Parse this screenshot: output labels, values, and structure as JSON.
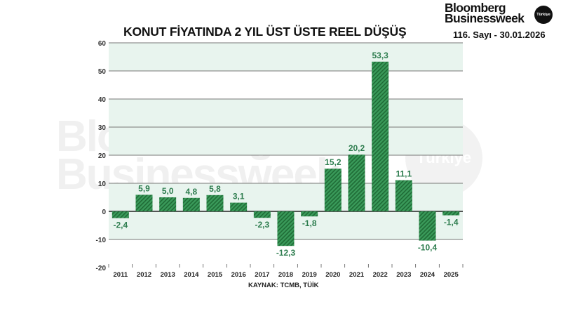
{
  "header": {
    "title": "KONUT FİYATINDA 2 YIL ÜST ÜSTE REEL DÜŞÜŞ",
    "brand_line1": "Bloomberg",
    "brand_line2": "Businessweek",
    "brand_badge": "Türkiye",
    "issue": "116. Sayı - 30.01.2026"
  },
  "watermark": {
    "line1": "Bloomberg",
    "line2": "Businessweek",
    "badge": "Türkiye"
  },
  "footer": {
    "source": "KAYNAK: TCMB, TÜİK"
  },
  "colors": {
    "bar_fill": "#2e8b4a",
    "bar_stripe": "#1f6b36",
    "label": "#2e7d4f",
    "band": "#e8f4ee",
    "gridline": "#777777"
  },
  "chart_data": {
    "type": "bar",
    "title": "KONUT FİYATINDA 2 YIL ÜST ÜSTE REEL DÜŞÜŞ",
    "xlabel": "",
    "ylabel": "",
    "categories": [
      "2011",
      "2012",
      "2013",
      "2014",
      "2015",
      "2016",
      "2017",
      "2018",
      "2019",
      "2020",
      "2021",
      "2022",
      "2023",
      "2024",
      "2025"
    ],
    "values": [
      -2.4,
      5.9,
      5.0,
      4.8,
      5.8,
      3.1,
      -2.3,
      -12.3,
      -1.8,
      15.2,
      20.2,
      53.3,
      11.1,
      -10.4,
      -1.4
    ],
    "value_labels": [
      "-2,4",
      "5,9",
      "5,0",
      "4,8",
      "5,8",
      "3,1",
      "-2,3",
      "-12,3",
      "-1,8",
      "15,2",
      "20,2",
      "53,3",
      "11,1",
      "-10,4",
      "-1,4"
    ],
    "yticks": [
      60,
      50,
      40,
      30,
      20,
      10,
      0,
      -10,
      -20
    ],
    "ylim": [
      -20,
      60
    ],
    "grid": true,
    "legend": null,
    "source": "KAYNAK: TCMB, TÜİK"
  }
}
